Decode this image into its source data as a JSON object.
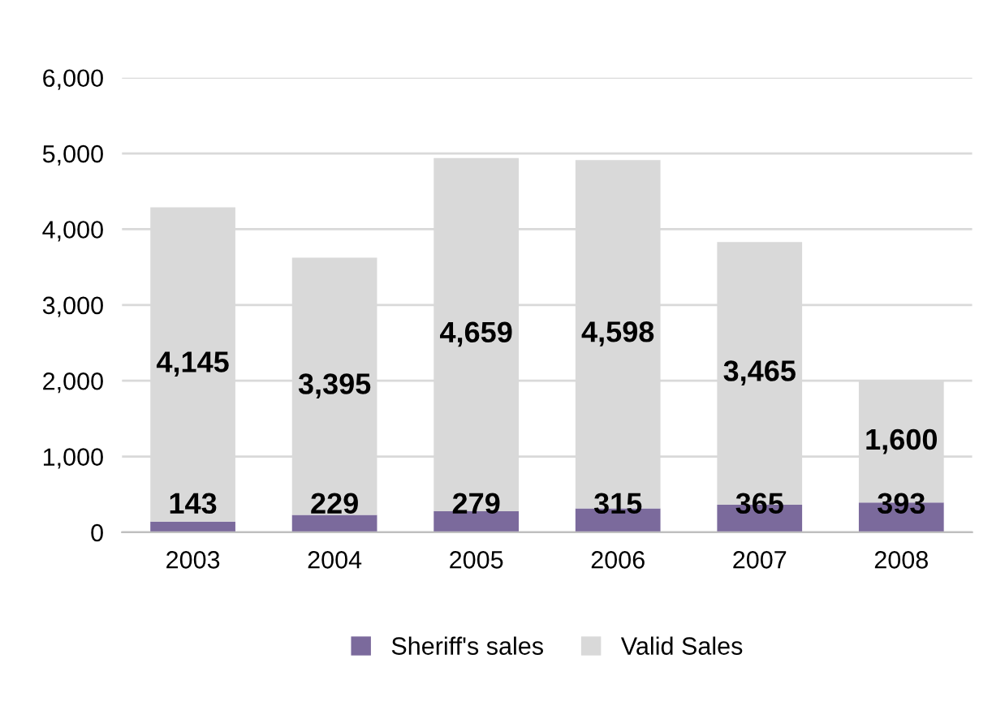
{
  "chart_data": {
    "type": "bar",
    "stacked": true,
    "categories": [
      "2003",
      "2004",
      "2005",
      "2006",
      "2007",
      "2008"
    ],
    "series": [
      {
        "name": "Sheriff's sales",
        "color": "#7b6a9c",
        "values": [
          143,
          229,
          279,
          315,
          365,
          393
        ],
        "value_labels": [
          "143",
          "229",
          "279",
          "315",
          "365",
          "393"
        ]
      },
      {
        "name": "Valid Sales",
        "color": "#d9d9d9",
        "values": [
          4145,
          3395,
          4659,
          4598,
          3465,
          1600
        ],
        "value_labels": [
          "4,145",
          "3,395",
          "4,659",
          "4,598",
          "3,465",
          "1,600"
        ]
      }
    ],
    "ylim": [
      0,
      6000
    ],
    "yticks": [
      {
        "value": 0,
        "label": "0"
      },
      {
        "value": 1000,
        "label": "1,000"
      },
      {
        "value": 2000,
        "label": "2,000"
      },
      {
        "value": 3000,
        "label": "3,000"
      },
      {
        "value": 4000,
        "label": "4,000"
      },
      {
        "value": 5000,
        "label": "5,000"
      },
      {
        "value": 6000,
        "label": "6,000"
      }
    ],
    "grid": "y",
    "legend": "bottom"
  }
}
